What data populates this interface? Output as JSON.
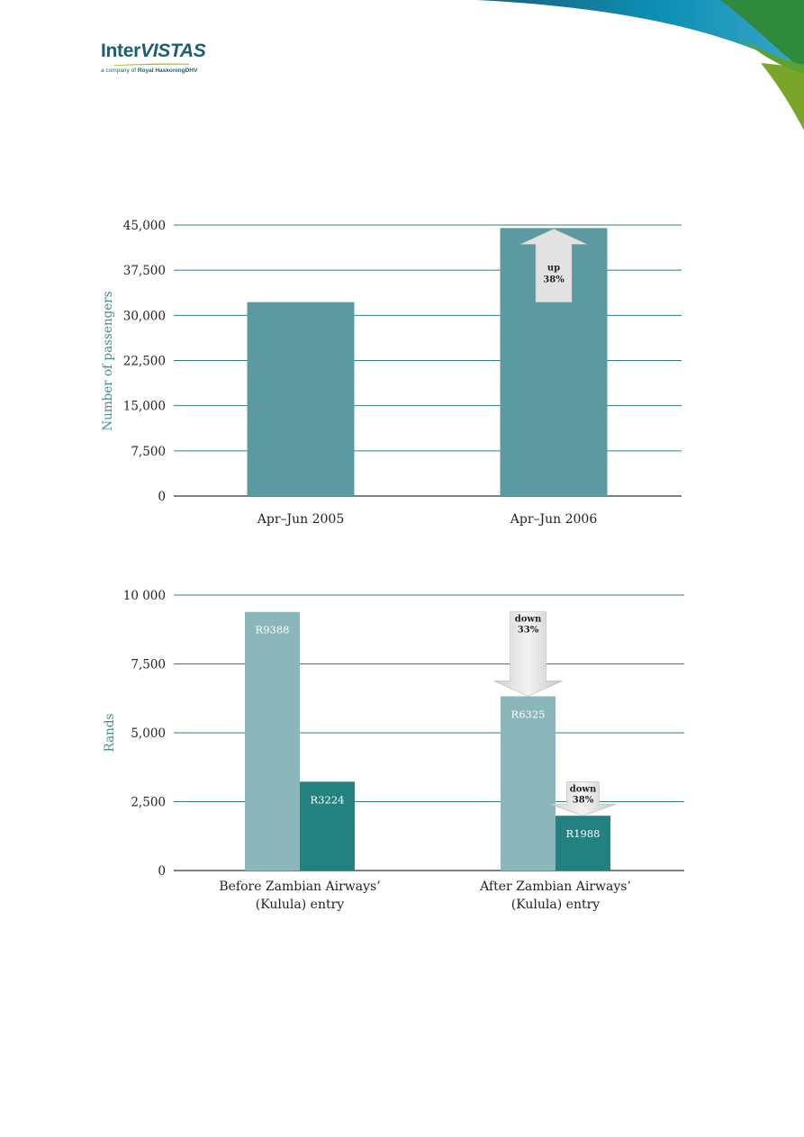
{
  "brand": {
    "name_part1": "Inter",
    "name_part2": "VISTAS",
    "tagline_part1": "a company of ",
    "tagline_part2": "Royal HaskoningDHV",
    "colors": {
      "teal": "#1b5f74",
      "lime": "#9bc31c",
      "blue": "#0b8fb3",
      "green": "#3f8f3a"
    }
  },
  "chart_data": [
    {
      "type": "bar",
      "title": "",
      "xlabel": "",
      "ylabel": "Number of passengers",
      "ylim": [
        0,
        45000
      ],
      "yticks": [
        0,
        7500,
        15000,
        22500,
        30000,
        37500,
        45000
      ],
      "ytick_labels": [
        "0",
        "7,500",
        "15,000",
        "22,500",
        "30,000",
        "37,500",
        "45,000"
      ],
      "categories": [
        "Apr–Jun 2005",
        "Apr–Jun 2006"
      ],
      "values": [
        32200,
        44500
      ],
      "bar_color": "#5a9aa0",
      "grid": true,
      "annotation": {
        "line1": "up",
        "line2": "38%",
        "category_index": 1,
        "from": 32200,
        "to": 44500
      }
    },
    {
      "type": "bar",
      "title": "",
      "xlabel": "",
      "ylabel": "Rands",
      "ylim": [
        0,
        10000
      ],
      "yticks": [
        0,
        2500,
        5000,
        7500,
        10000
      ],
      "ytick_labels": [
        "0",
        "2,500",
        "5,000",
        "7,500",
        "10 000"
      ],
      "categories": [
        {
          "line1": "Before Zambian Airways’",
          "line2": "(Kulula) entry"
        },
        {
          "line1": "After Zambian Airways’",
          "line2": "(Kulula) entry"
        }
      ],
      "series": [
        {
          "values": [
            9388,
            6325
          ],
          "labels": [
            "R9388",
            "R6325"
          ],
          "color": "#8bb6ba"
        },
        {
          "values": [
            3224,
            1988
          ],
          "labels": [
            "R3224",
            "R1988"
          ],
          "color": "#23827f"
        }
      ],
      "grid": true,
      "annotations": [
        {
          "line1": "down",
          "line2": "33%",
          "category_index": 1,
          "series_index": 0,
          "from": 9388,
          "to": 6325
        },
        {
          "line1": "down",
          "line2": "38%",
          "category_index": 1,
          "series_index": 1,
          "from": 3224,
          "to": 1988
        }
      ]
    }
  ]
}
